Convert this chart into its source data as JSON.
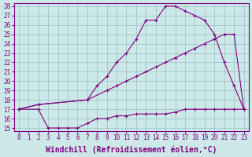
{
  "xlabel": "Windchill (Refroidissement éolien,°C)",
  "bg_color": "#cce8e8",
  "line_color": "#800080",
  "grid_color": "#9bbfbf",
  "xlim": [
    -0.5,
    23.5
  ],
  "ylim": [
    14.7,
    28.3
  ],
  "xticks": [
    0,
    1,
    2,
    3,
    4,
    5,
    6,
    7,
    8,
    9,
    10,
    11,
    12,
    13,
    14,
    15,
    16,
    17,
    18,
    19,
    20,
    21,
    22,
    23
  ],
  "yticks": [
    15,
    16,
    17,
    18,
    19,
    20,
    21,
    22,
    23,
    24,
    25,
    26,
    27,
    28
  ],
  "curve1_x": [
    0,
    2,
    3,
    4,
    5,
    6,
    7,
    8,
    9,
    10,
    11,
    12,
    13,
    14,
    15,
    16,
    17,
    18,
    19,
    20,
    21,
    22,
    23
  ],
  "curve1_y": [
    17,
    17,
    15,
    15,
    15,
    15,
    15.5,
    16,
    16,
    16.3,
    16.3,
    16.5,
    16.5,
    16.5,
    16.5,
    16.7,
    17,
    17,
    17,
    17,
    17,
    17,
    17
  ],
  "curve2_x": [
    0,
    2,
    7,
    9,
    10,
    11,
    12,
    13,
    14,
    15,
    16,
    17,
    18,
    19,
    20,
    21,
    22,
    23
  ],
  "curve2_y": [
    17,
    17.5,
    18,
    19,
    19.5,
    20,
    20.5,
    21,
    21.5,
    22,
    22.5,
    23,
    23.5,
    24,
    24.5,
    25,
    25,
    17
  ],
  "curve3_x": [
    0,
    2,
    7,
    8,
    9,
    10,
    11,
    12,
    13,
    14,
    15,
    16,
    17,
    18,
    19,
    20,
    21,
    22,
    23
  ],
  "curve3_y": [
    17,
    17.5,
    18,
    19.5,
    20.5,
    22,
    23,
    24.5,
    26.5,
    26.5,
    28,
    28,
    27.5,
    27,
    26.5,
    25,
    22,
    19.5,
    17
  ],
  "font_family": "monospace",
  "xlabel_fontsize": 7,
  "tick_fontsize": 5.5
}
